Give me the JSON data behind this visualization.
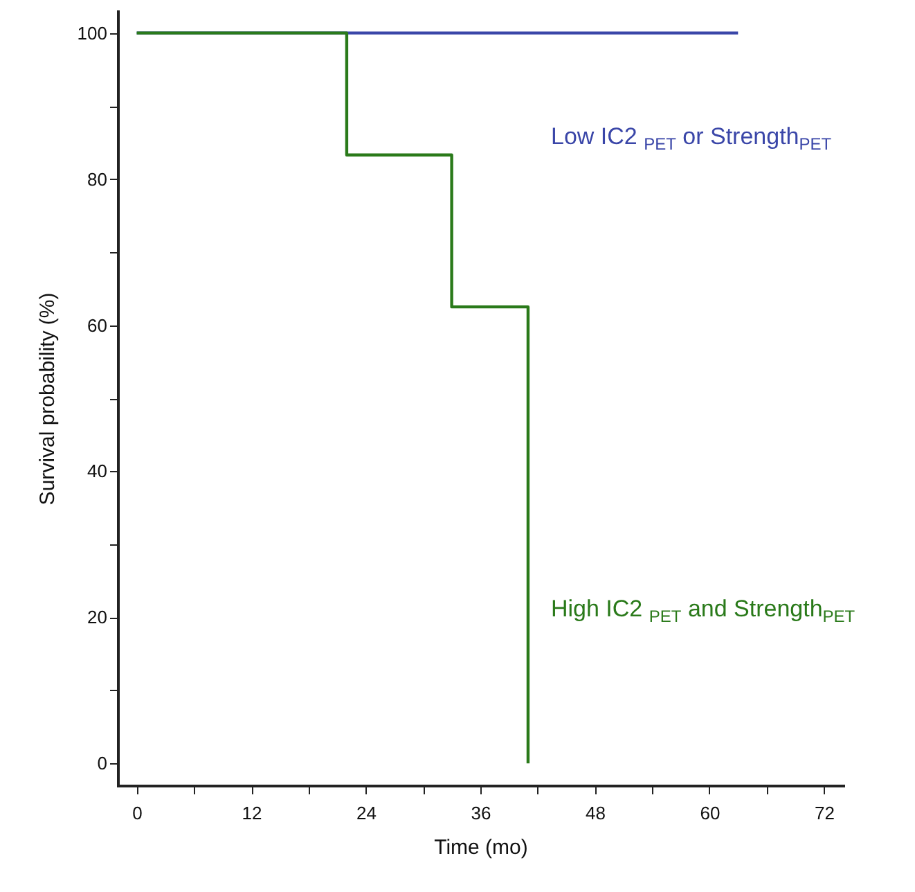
{
  "chart_data": {
    "type": "step",
    "xlabel": "Time (mo)",
    "ylabel": "Survival probability (%)",
    "xlim": [
      -2,
      74
    ],
    "ylim": [
      -3,
      103
    ],
    "xticks": [
      0,
      {
        "value": 6,
        "label": null
      },
      12,
      {
        "value": 18,
        "label": null
      },
      24,
      {
        "value": 30,
        "label": null
      },
      36,
      {
        "value": 42,
        "label": null
      },
      48,
      {
        "value": 54,
        "label": null
      },
      60,
      {
        "value": 66,
        "label": null
      },
      72
    ],
    "yticks": [
      0,
      {
        "value": 10,
        "label": null
      },
      20,
      {
        "value": 30,
        "label": null
      },
      40,
      {
        "value": 50,
        "label": null
      },
      60,
      {
        "value": 70,
        "label": null
      },
      80,
      {
        "value": 90,
        "label": null
      },
      100
    ],
    "grid": false,
    "series": [
      {
        "name": "Low IC2 $_{PET}$ or Strength$_{PET}$",
        "color": "#3a46a8",
        "x": [
          0,
          63
        ],
        "values": [
          100,
          100
        ]
      },
      {
        "name": "High IC2 $_{PET}$ and Strength$_{PET}$",
        "color": "#2a7a1a",
        "x": [
          0,
          22,
          33,
          41
        ],
        "values": [
          100,
          83.3,
          62.5,
          0
        ]
      }
    ]
  }
}
